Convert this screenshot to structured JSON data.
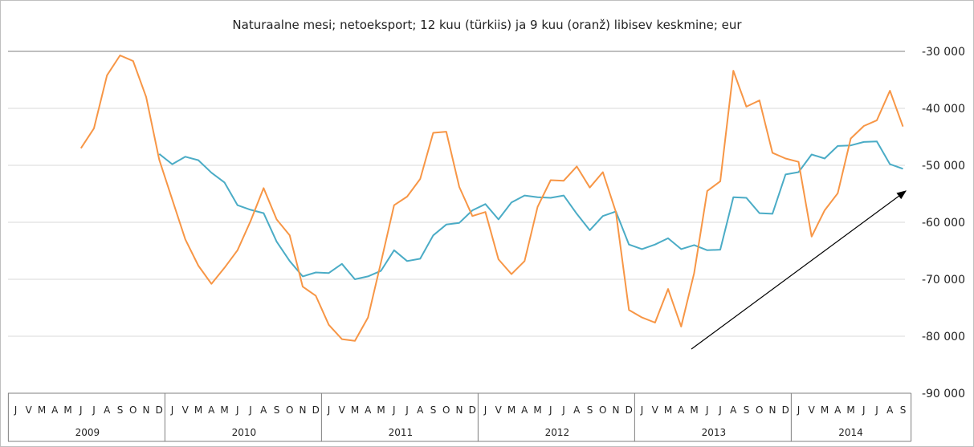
{
  "chart_data": {
    "type": "line",
    "title": "Naturaalne mesi; netoeksport; 12 kuu (türkiis) ja 9 kuu (oranž) libisev keskmine; eur",
    "xlabel": "",
    "ylabel": "",
    "ylim": [
      -90000,
      -30000
    ],
    "y_ticks": [
      -30000,
      -40000,
      -50000,
      -60000,
      -70000,
      -80000,
      -90000
    ],
    "y_tick_labels": [
      "-30 000",
      "-40 000",
      "-50 000",
      "-60 000",
      "-70 000",
      "-80 000",
      "-90 000"
    ],
    "grid": true,
    "legend": "none",
    "years": [
      "2009",
      "2010",
      "2011",
      "2012",
      "2013",
      "2014"
    ],
    "month_letters": [
      "J",
      "V",
      "M",
      "A",
      "M",
      "J",
      "J",
      "A",
      "S",
      "O",
      "N",
      "D"
    ],
    "last_year_months": 9,
    "series": [
      {
        "color": "#4bacc6",
        "start_index": 11,
        "values": [
          -48000,
          -49800,
          -48500,
          -49100,
          -51300,
          -53000,
          -57000,
          -57800,
          -58400,
          -63400,
          -66800,
          -69500,
          -68800,
          -68900,
          -67300,
          -70000,
          -69500,
          -68500,
          -64900,
          -66800,
          -66400,
          -62300,
          -60400,
          -60100,
          -57900,
          -56800,
          -59500,
          -56500,
          -55300,
          -55600,
          -55700,
          -55300,
          -58500,
          -61400,
          -58900,
          -58100,
          -63900,
          -64700,
          -63900,
          -62800,
          -64700,
          -64000,
          -64900,
          -64800,
          -55600,
          -55700,
          -58400,
          -58500,
          -51600,
          -51200,
          -48100,
          -48800,
          -46600,
          -46500,
          -45900,
          -45800,
          -49800,
          -50600
        ]
      },
      {
        "color": "#f79646",
        "start_index": 5,
        "values": [
          -47000,
          -43500,
          -34200,
          -30700,
          -31700,
          -38000,
          -49000,
          -56000,
          -63000,
          -67600,
          -70800,
          -68000,
          -64900,
          -59800,
          -54000,
          -59500,
          -62300,
          -71300,
          -72900,
          -78000,
          -80500,
          -80800,
          -76700,
          -67000,
          -57000,
          -55500,
          -52400,
          -44300,
          -44100,
          -53800,
          -58900,
          -58200,
          -66500,
          -69100,
          -66800,
          -57300,
          -52600,
          -52700,
          -50200,
          -53900,
          -51200,
          -58200,
          -75400,
          -76700,
          -77600,
          -71700,
          -78300,
          -68900,
          -54500,
          -52800,
          -33400,
          -39700,
          -38600,
          -47800,
          -48800,
          -49400,
          -62500,
          -57900,
          -54900,
          -45300,
          -43100,
          -42100,
          -36900,
          -43200
        ]
      }
    ]
  }
}
